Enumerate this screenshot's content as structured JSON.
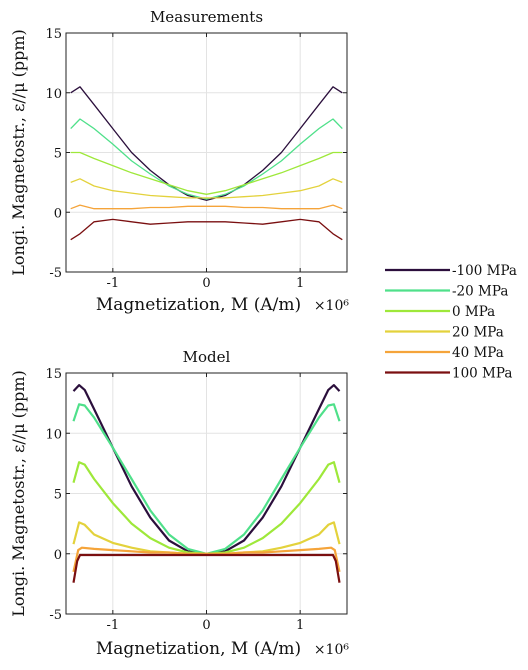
{
  "chart_data": [
    {
      "type": "line",
      "title": "Measurements",
      "xlabel": "Magnetization, M (A/m)",
      "x_multiplier": "×10⁶",
      "ylabel": "Longi. Magnetostr., ε//μ (ppm)",
      "xlim": [
        -1.5,
        1.5
      ],
      "ylim": [
        -5,
        15
      ],
      "xticks": [
        -1,
        0,
        1
      ],
      "xtick_labels": [
        "-1",
        "0",
        "1"
      ],
      "yticks": [
        -5,
        0,
        5,
        10,
        15
      ],
      "ytick_labels": [
        "-5",
        "0",
        "5",
        "10",
        "15"
      ],
      "grid": true,
      "series": [
        {
          "name": "-100 MPa",
          "color": "#2b0f3c",
          "x": [
            -1.45,
            -1.35,
            -1.2,
            -1.0,
            -0.8,
            -0.6,
            -0.4,
            -0.2,
            0,
            0.2,
            0.4,
            0.6,
            0.8,
            1.0,
            1.2,
            1.35,
            1.45
          ],
          "y": [
            10.0,
            10.5,
            9.0,
            7.0,
            5.0,
            3.5,
            2.3,
            1.4,
            1.0,
            1.4,
            2.3,
            3.5,
            5.0,
            7.0,
            9.0,
            10.5,
            10.0
          ]
        },
        {
          "name": "-20 MPa",
          "color": "#4fe08a",
          "x": [
            -1.45,
            -1.35,
            -1.2,
            -1.0,
            -0.8,
            -0.6,
            -0.4,
            -0.2,
            0,
            0.2,
            0.4,
            0.6,
            0.8,
            1.0,
            1.2,
            1.35,
            1.45
          ],
          "y": [
            7.0,
            7.8,
            7.0,
            5.7,
            4.3,
            3.2,
            2.2,
            1.5,
            1.1,
            1.5,
            2.2,
            3.2,
            4.3,
            5.7,
            7.0,
            7.8,
            7.0
          ]
        },
        {
          "name": "0 MPa",
          "color": "#9ee83a",
          "x": [
            -1.45,
            -1.35,
            -1.2,
            -1.0,
            -0.8,
            -0.6,
            -0.4,
            -0.2,
            0,
            0.2,
            0.4,
            0.6,
            0.8,
            1.0,
            1.2,
            1.35,
            1.45
          ],
          "y": [
            5.0,
            5.0,
            4.5,
            3.9,
            3.3,
            2.8,
            2.3,
            1.8,
            1.5,
            1.8,
            2.3,
            2.8,
            3.3,
            3.9,
            4.5,
            5.0,
            5.0
          ]
        },
        {
          "name": "20 MPa",
          "color": "#e3d23c",
          "x": [
            -1.45,
            -1.35,
            -1.2,
            -1.0,
            -0.8,
            -0.6,
            -0.4,
            -0.2,
            0,
            0.2,
            0.4,
            0.6,
            0.8,
            1.0,
            1.2,
            1.35,
            1.45
          ],
          "y": [
            2.5,
            2.8,
            2.2,
            1.8,
            1.6,
            1.4,
            1.3,
            1.2,
            1.2,
            1.2,
            1.3,
            1.4,
            1.6,
            1.8,
            2.2,
            2.8,
            2.5
          ]
        },
        {
          "name": "40 MPa",
          "color": "#f5a43a",
          "x": [
            -1.45,
            -1.35,
            -1.2,
            -1.0,
            -0.8,
            -0.6,
            -0.4,
            -0.2,
            0,
            0.2,
            0.4,
            0.6,
            0.8,
            1.0,
            1.2,
            1.35,
            1.45
          ],
          "y": [
            0.3,
            0.6,
            0.3,
            0.3,
            0.3,
            0.4,
            0.4,
            0.5,
            0.5,
            0.5,
            0.4,
            0.4,
            0.3,
            0.3,
            0.3,
            0.6,
            0.3
          ]
        },
        {
          "name": "100 MPa",
          "color": "#7a0f10",
          "x": [
            -1.45,
            -1.35,
            -1.2,
            -1.0,
            -0.8,
            -0.6,
            -0.4,
            -0.2,
            0,
            0.2,
            0.4,
            0.6,
            0.8,
            1.0,
            1.2,
            1.35,
            1.45
          ],
          "y": [
            -2.3,
            -1.8,
            -0.8,
            -0.6,
            -0.8,
            -1.0,
            -0.9,
            -0.8,
            -0.8,
            -0.8,
            -0.9,
            -1.0,
            -0.8,
            -0.6,
            -0.8,
            -1.8,
            -2.3
          ]
        }
      ]
    },
    {
      "type": "line",
      "title": "Model",
      "xlabel": "Magnetization, M (A/m)",
      "x_multiplier": "×10⁶",
      "ylabel": "Longi. Magnetostr., ε//μ (ppm)",
      "xlim": [
        -1.5,
        1.5
      ],
      "ylim": [
        -5,
        15
      ],
      "xticks": [
        -1,
        0,
        1
      ],
      "xtick_labels": [
        "-1",
        "0",
        "1"
      ],
      "yticks": [
        -5,
        0,
        5,
        10,
        15
      ],
      "ytick_labels": [
        "-5",
        "0",
        "5",
        "10",
        "15"
      ],
      "grid": true,
      "series": [
        {
          "name": "-100 MPa",
          "color": "#2b0f3c",
          "x": [
            -1.42,
            -1.36,
            -1.3,
            -1.2,
            -1.0,
            -0.8,
            -0.6,
            -0.4,
            -0.2,
            0,
            0.2,
            0.4,
            0.6,
            0.8,
            1.0,
            1.2,
            1.3,
            1.36,
            1.42
          ],
          "y": [
            13.5,
            14.0,
            13.6,
            12.0,
            8.8,
            5.6,
            3.0,
            1.1,
            0.2,
            0.0,
            0.2,
            1.1,
            3.0,
            5.6,
            8.8,
            12.0,
            13.6,
            14.0,
            13.5
          ]
        },
        {
          "name": "-20 MPa",
          "color": "#4fe08a",
          "x": [
            -1.42,
            -1.36,
            -1.3,
            -1.2,
            -1.0,
            -0.8,
            -0.6,
            -0.4,
            -0.2,
            0,
            0.2,
            0.4,
            0.6,
            0.8,
            1.0,
            1.2,
            1.3,
            1.36,
            1.42
          ],
          "y": [
            11.0,
            12.4,
            12.3,
            11.3,
            8.8,
            6.2,
            3.6,
            1.6,
            0.4,
            0.0,
            0.4,
            1.6,
            3.6,
            6.2,
            8.8,
            11.3,
            12.3,
            12.4,
            11.0
          ]
        },
        {
          "name": "0 MPa",
          "color": "#9ee83a",
          "x": [
            -1.42,
            -1.36,
            -1.3,
            -1.2,
            -1.0,
            -0.8,
            -0.6,
            -0.4,
            -0.2,
            0,
            0.2,
            0.4,
            0.6,
            0.8,
            1.0,
            1.2,
            1.3,
            1.36,
            1.42
          ],
          "y": [
            5.9,
            7.6,
            7.4,
            6.2,
            4.2,
            2.5,
            1.3,
            0.5,
            0.1,
            0.0,
            0.1,
            0.5,
            1.3,
            2.5,
            4.2,
            6.2,
            7.4,
            7.6,
            5.9
          ]
        },
        {
          "name": "20 MPa",
          "color": "#e3d23c",
          "x": [
            -1.42,
            -1.36,
            -1.3,
            -1.2,
            -1.0,
            -0.8,
            -0.6,
            -0.4,
            -0.2,
            0,
            0.2,
            0.4,
            0.6,
            0.8,
            1.0,
            1.2,
            1.3,
            1.36,
            1.42
          ],
          "y": [
            0.8,
            2.6,
            2.4,
            1.6,
            0.9,
            0.5,
            0.2,
            0.1,
            0.0,
            0.0,
            0.0,
            0.1,
            0.2,
            0.5,
            0.9,
            1.6,
            2.4,
            2.6,
            0.8
          ]
        },
        {
          "name": "40 MPa",
          "color": "#f5a43a",
          "x": [
            -1.42,
            -1.37,
            -1.33,
            -1.2,
            -1.0,
            -0.8,
            -0.6,
            -0.4,
            -0.2,
            0,
            0.2,
            0.4,
            0.6,
            0.8,
            1.0,
            1.2,
            1.33,
            1.37,
            1.42
          ],
          "y": [
            -1.5,
            0.3,
            0.5,
            0.4,
            0.3,
            0.2,
            0.1,
            0.1,
            0.0,
            0.0,
            0.0,
            0.1,
            0.1,
            0.2,
            0.3,
            0.4,
            0.5,
            0.3,
            -1.5
          ]
        },
        {
          "name": "100 MPa",
          "color": "#7a0f10",
          "x": [
            -1.42,
            -1.38,
            -1.35,
            -1.3,
            -1.0,
            -0.6,
            -0.2,
            0,
            0.2,
            0.6,
            1.0,
            1.3,
            1.35,
            1.38,
            1.42
          ],
          "y": [
            -2.4,
            -0.6,
            -0.1,
            -0.1,
            -0.1,
            -0.1,
            -0.1,
            -0.1,
            -0.1,
            -0.1,
            -0.1,
            -0.1,
            -0.1,
            -0.6,
            -2.4
          ]
        }
      ]
    }
  ],
  "legend": {
    "placement": "right",
    "entries": [
      {
        "label": "-100 MPa",
        "color": "#2b0f3c"
      },
      {
        "label": "-20 MPa",
        "color": "#4fe08a"
      },
      {
        "label": "0 MPa",
        "color": "#9ee83a"
      },
      {
        "label": "20 MPa",
        "color": "#e3d23c"
      },
      {
        "label": "40 MPa",
        "color": "#f5a43a"
      },
      {
        "label": "100 MPa",
        "color": "#7a0f10"
      }
    ]
  }
}
